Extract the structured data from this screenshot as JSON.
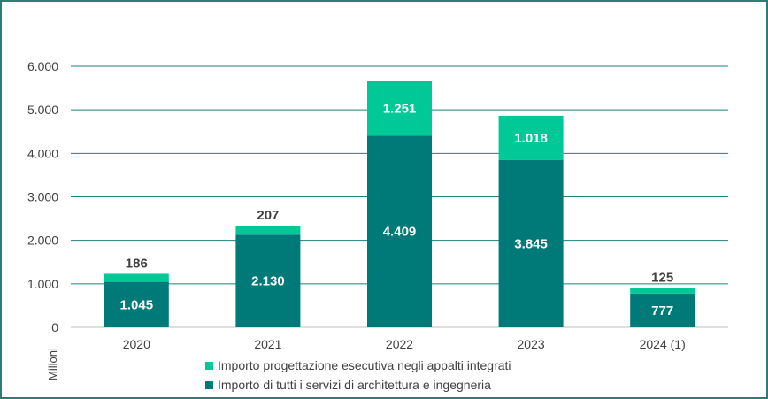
{
  "chart_data": {
    "type": "bar",
    "stacked": true,
    "categories": [
      "2020",
      "2021",
      "2022",
      "2023",
      "2024 (1)"
    ],
    "series": [
      {
        "name": "Importo di tutti i servizi di architettura e ingegneria",
        "values": [
          1045,
          2130,
          4409,
          3845,
          777
        ],
        "labels": [
          "1.045",
          "2.130",
          "4.409",
          "3.845",
          "777"
        ],
        "color": "#007a78"
      },
      {
        "name": "Importo progettazione esecutiva negli appalti integrati",
        "values": [
          186,
          207,
          1251,
          1018,
          125
        ],
        "labels": [
          "186",
          "207",
          "1.251",
          "1.018",
          "125"
        ],
        "color": "#00c896"
      }
    ],
    "ylim": [
      0,
      6000
    ],
    "yticks": [
      "0",
      "1.000",
      "2.000",
      "3.000",
      "4.000",
      "5.000",
      "6.000"
    ],
    "ylabel": "Milioni",
    "grid": true,
    "legend_position": "bottom"
  }
}
